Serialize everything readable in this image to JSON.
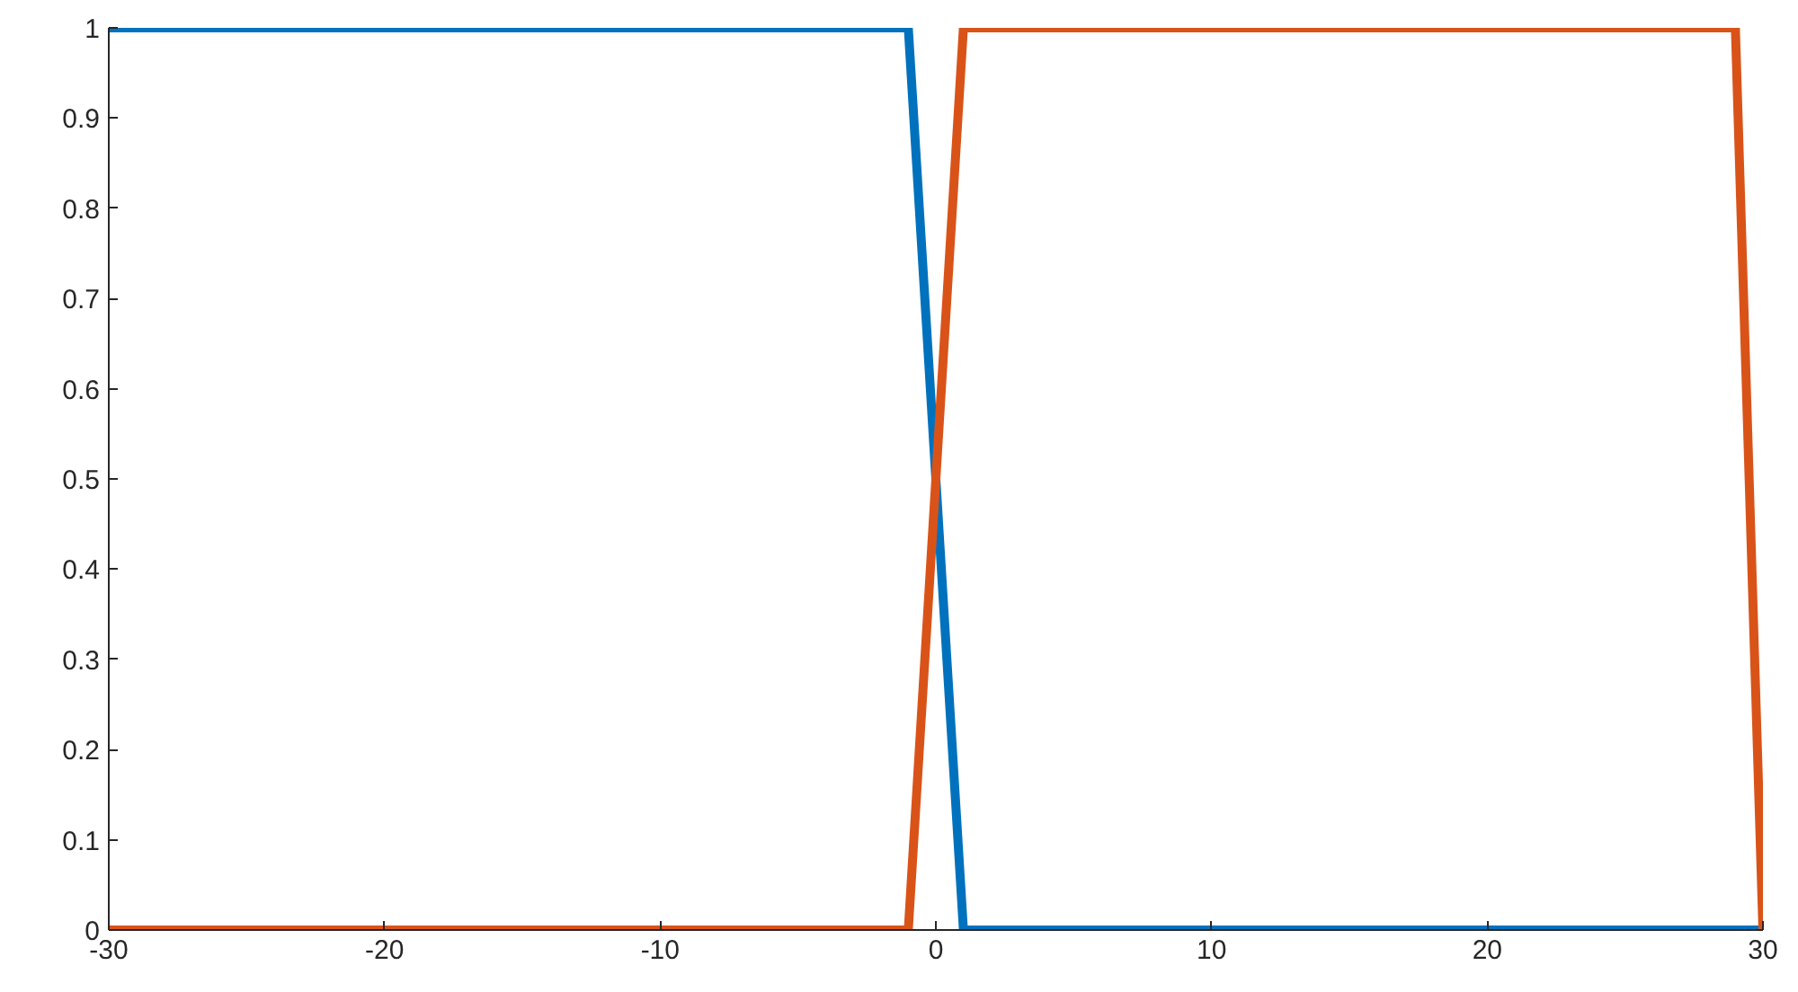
{
  "chart_data": {
    "type": "line",
    "series": [
      {
        "color": "#0072bd",
        "x": [
          -30,
          -1,
          1,
          30
        ],
        "values": [
          1,
          1,
          0,
          0
        ]
      },
      {
        "color": "#d95319",
        "x": [
          -30,
          -1,
          1,
          29,
          30
        ],
        "values": [
          0,
          0,
          1,
          1,
          0
        ]
      }
    ],
    "xlim": [
      -30,
      30
    ],
    "xticks": [
      -30,
      -20,
      -10,
      0,
      10,
      20,
      30
    ],
    "ylim": [
      0,
      1
    ],
    "yticks": [
      0,
      0.1,
      0.2,
      0.3,
      0.4,
      0.5,
      0.6,
      0.7,
      0.8,
      0.9,
      1
    ],
    "grid": false,
    "marker": "none",
    "line_style": "solid"
  }
}
